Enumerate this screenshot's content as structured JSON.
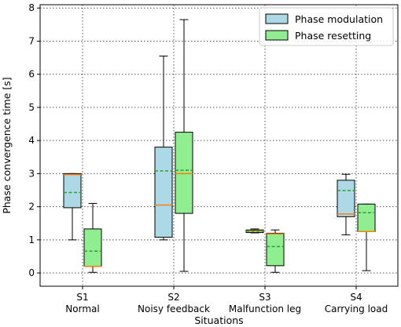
{
  "chart_data": {
    "type": "box",
    "xlabel": "Situations",
    "ylabel": "Phase convergence time [s]",
    "ylim": [
      -0.4,
      8.1
    ],
    "yticks": [
      0,
      1,
      2,
      3,
      4,
      5,
      6,
      7,
      8
    ],
    "grid": true,
    "legend_position": "top-right",
    "categories": [
      {
        "code": "S1",
        "name": "Normal"
      },
      {
        "code": "S2",
        "name": "Noisy feedback"
      },
      {
        "code": "S3",
        "name": "Malfunction leg"
      },
      {
        "code": "S4",
        "name": "Carrying load"
      }
    ],
    "series": [
      {
        "name": "Phase modulation",
        "color": "#add8e6",
        "boxes": [
          {
            "whislo": 1.0,
            "q1": 1.97,
            "median": 2.97,
            "q3": 3.0,
            "whishi": 3.0,
            "mean": 2.43
          },
          {
            "whislo": 1.0,
            "q1": 1.08,
            "median": 2.05,
            "q3": 3.8,
            "whishi": 6.55,
            "mean": 3.08
          },
          {
            "whislo": 1.21,
            "q1": 1.22,
            "median": 1.27,
            "q3": 1.3,
            "whishi": 1.33,
            "mean": 1.26
          },
          {
            "whislo": 1.15,
            "q1": 1.7,
            "median": 1.78,
            "q3": 2.8,
            "whishi": 2.98,
            "mean": 2.49
          }
        ]
      },
      {
        "name": "Phase resetting",
        "color": "#90ee90",
        "boxes": [
          {
            "whislo": 0.02,
            "q1": 0.2,
            "median": 0.2,
            "q3": 1.33,
            "whishi": 2.1,
            "mean": 0.66
          },
          {
            "whislo": 0.05,
            "q1": 1.8,
            "median": 3.0,
            "q3": 4.25,
            "whishi": 7.65,
            "mean": 3.1
          },
          {
            "whislo": 0.02,
            "q1": 0.22,
            "median": 1.18,
            "q3": 1.2,
            "whishi": 1.3,
            "mean": 0.8
          },
          {
            "whislo": 0.07,
            "q1": 1.25,
            "median": 1.25,
            "q3": 2.08,
            "whishi": 2.08,
            "mean": 1.82
          }
        ]
      }
    ],
    "median_color": "#ff7f0e",
    "mean_color": "#2ca02c"
  }
}
